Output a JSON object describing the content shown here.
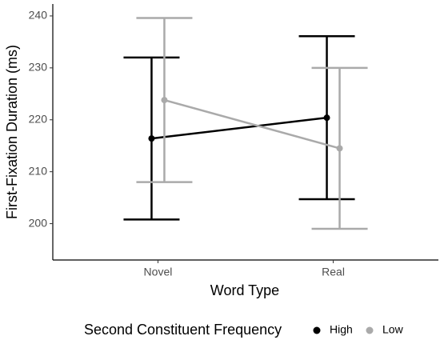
{
  "chart_data": {
    "type": "line",
    "x_label": "Word Type",
    "y_label": "First-Fixation Duration (ms)",
    "categories": [
      "Novel",
      "Real"
    ],
    "series": [
      {
        "name": "High",
        "color": "#000000",
        "values": [
          216.4,
          220.4
        ],
        "errors": [
          15.6,
          15.7
        ]
      },
      {
        "name": "Low",
        "color": "#aaaaaa",
        "values": [
          223.8,
          214.5
        ],
        "errors": [
          15.8,
          15.5
        ]
      }
    ],
    "ylim": [
      193,
      242.3
    ],
    "yticks": [
      200,
      210,
      220,
      230,
      240
    ],
    "legend_title": "Second Constituent Frequency",
    "legend_position": "bottom",
    "grid": false
  }
}
